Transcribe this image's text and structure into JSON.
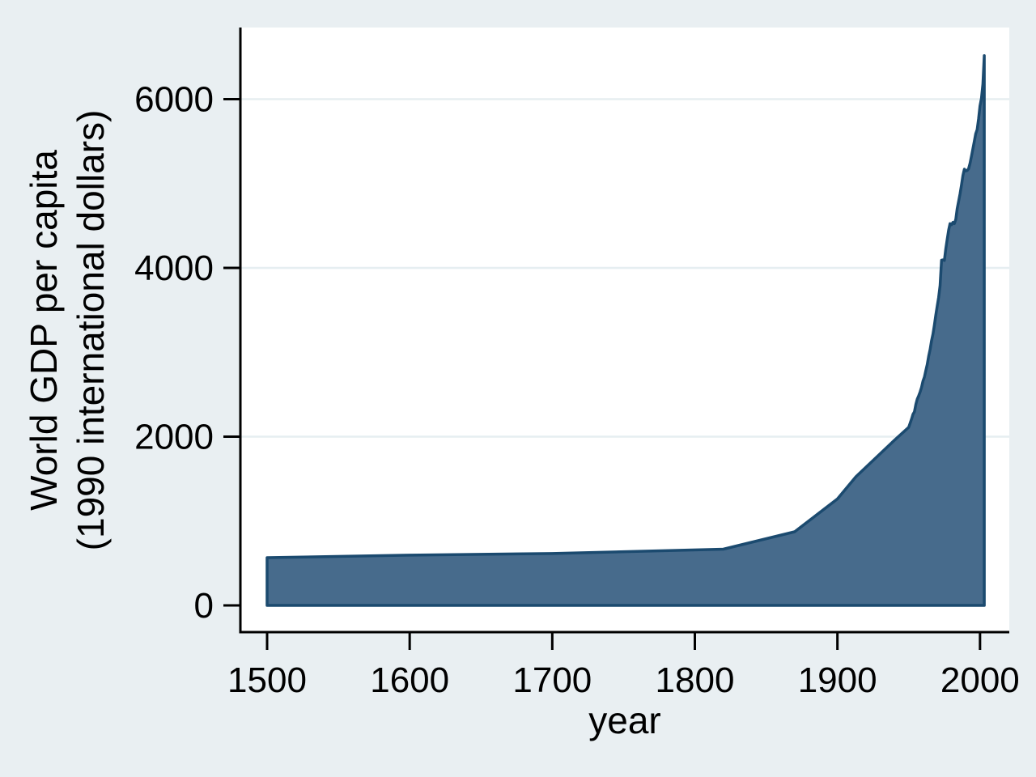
{
  "figure": {
    "background_color": "#e9eff2",
    "plot_background_color": "#ffffff",
    "grid_color": "#e6eef1",
    "axis_color": "#000000"
  },
  "chart_data": {
    "type": "area",
    "title": "",
    "xlabel": "year",
    "ylabel_lines": [
      "World GDP per capita",
      "(1990 international dollars)"
    ],
    "x_ticks": [
      1500,
      1600,
      1700,
      1800,
      1900,
      2000
    ],
    "y_ticks": [
      0,
      2000,
      4000,
      6000
    ],
    "xlim": [
      1500,
      2003
    ],
    "ylim": [
      0,
      6516
    ],
    "grid": "horizontal-at-y-labels-above-zero",
    "legend": "none",
    "area_fill_color": "#476b8c",
    "area_line_color": "#1b4a6f",
    "series": [
      {
        "name": "World GDP per capita (1990 international dollars)",
        "x": [
          1500,
          1600,
          1700,
          1820,
          1870,
          1900,
          1913,
          1940,
          1950,
          1951,
          1952,
          1953,
          1954,
          1955,
          1956,
          1957,
          1958,
          1959,
          1960,
          1961,
          1962,
          1963,
          1964,
          1965,
          1966,
          1967,
          1968,
          1969,
          1970,
          1971,
          1972,
          1973,
          1974,
          1975,
          1976,
          1977,
          1978,
          1979,
          1980,
          1981,
          1982,
          1983,
          1984,
          1985,
          1986,
          1987,
          1988,
          1989,
          1990,
          1991,
          1992,
          1993,
          1994,
          1995,
          1996,
          1997,
          1998,
          1999,
          2000,
          2001,
          2002,
          2003
        ],
        "y": [
          566,
          596,
          615,
          667,
          873,
          1262,
          1526,
          1958,
          2111,
          2160,
          2210,
          2265,
          2295,
          2385,
          2445,
          2485,
          2530,
          2585,
          2660,
          2705,
          2785,
          2855,
          2955,
          3035,
          3135,
          3215,
          3325,
          3440,
          3550,
          3650,
          3790,
          4091,
          4095,
          4088,
          4230,
          4340,
          4450,
          4525,
          4511,
          4540,
          4525,
          4575,
          4700,
          4790,
          4880,
          4980,
          5095,
          5170,
          5149,
          5155,
          5175,
          5240,
          5325,
          5410,
          5500,
          5590,
          5640,
          5770,
          5920,
          6010,
          6180,
          6516
        ]
      }
    ]
  }
}
